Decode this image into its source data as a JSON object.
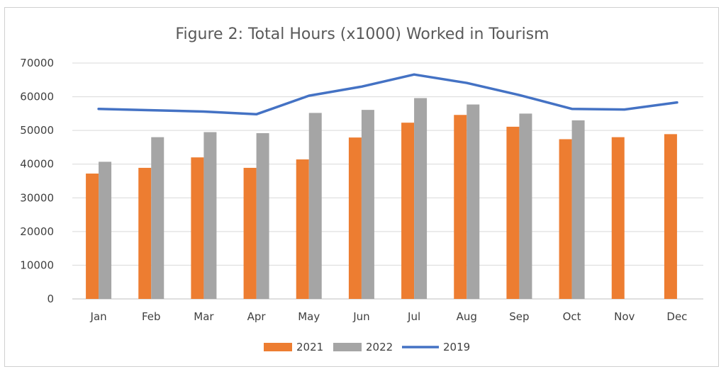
{
  "chart_data": {
    "type": "bar",
    "title": "Figure 2: Total Hours (x1000) Worked in Tourism",
    "xlabel": "",
    "ylabel": "",
    "categories": [
      "Jan",
      "Feb",
      "Mar",
      "Apr",
      "May",
      "Jun",
      "Jul",
      "Aug",
      "Sep",
      "Oct",
      "Nov",
      "Dec"
    ],
    "y_ticks": [
      "0",
      "10000",
      "20000",
      "30000",
      "40000",
      "50000",
      "60000",
      "70000"
    ],
    "ylim": [
      0,
      70000
    ],
    "grid": true,
    "legend_position": "bottom",
    "series": [
      {
        "name": "2021",
        "kind": "bar",
        "color": "#ED7D31",
        "values": [
          37200,
          38900,
          42000,
          38900,
          41400,
          47900,
          52300,
          54600,
          51100,
          47400,
          48000,
          48900
        ]
      },
      {
        "name": "2022",
        "kind": "bar",
        "color": "#A5A5A5",
        "values": [
          40700,
          48000,
          49500,
          49200,
          55200,
          56100,
          59600,
          57700,
          55000,
          53000,
          null,
          null
        ]
      },
      {
        "name": "2019",
        "kind": "line",
        "color": "#4472C4",
        "values": [
          56400,
          56000,
          55600,
          54800,
          60300,
          63000,
          66600,
          64100,
          60500,
          56400,
          56200,
          58300
        ]
      }
    ]
  }
}
